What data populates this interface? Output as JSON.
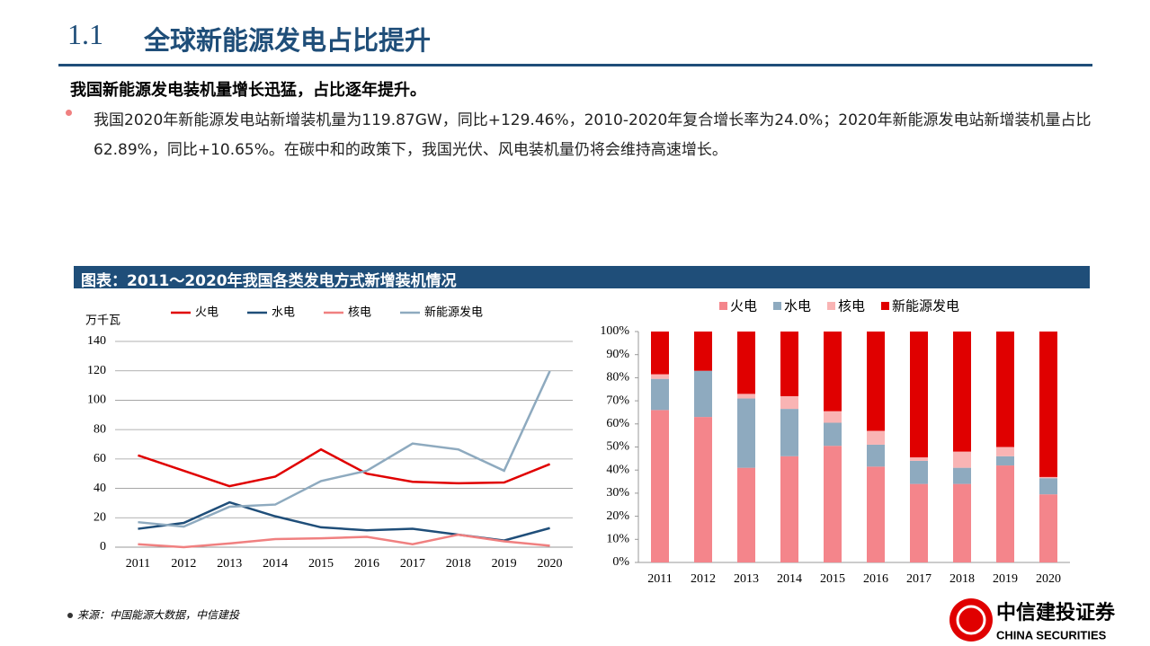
{
  "header": {
    "number": "1.1",
    "title": "全球新能源发电占比提升",
    "subtitle": "我国新能源发电装机量增长迅猛，占比逐年提升。",
    "bullet": "我国2020年新能源发电站新增装机量为119.87GW，同比+129.46%，2010-2020年复合增长率为24.0%；2020年新能源发电站新增装机量占比62.89%，同比+10.65%。在碳中和的政策下，我国光伏、风电装机量仍将会维持高速增长。"
  },
  "figure_title": "图表：2011～2020年我国各类发电方式新增装机情况",
  "source": "来源：中国能源大数据，中信建投",
  "logo": {
    "name": "中信建投证券",
    "english": "CHINA SECURITIES"
  },
  "chart_data": [
    {
      "type": "line",
      "ylabel": "万千瓦",
      "categories": [
        "2011",
        "2012",
        "2013",
        "2014",
        "2015",
        "2016",
        "2017",
        "2018",
        "2019",
        "2020"
      ],
      "series": [
        {
          "name": "火电",
          "color": "#e00000",
          "values": [
            62.5,
            52,
            41.5,
            48,
            66.5,
            50,
            44.5,
            43.5,
            44,
            56.5
          ]
        },
        {
          "name": "水电",
          "color": "#1f4e79",
          "values": [
            12.5,
            16.5,
            30.5,
            21,
            13.5,
            11.5,
            12.5,
            8.5,
            4.5,
            13
          ]
        },
        {
          "name": "核电",
          "color": "#f08080",
          "values": [
            2,
            0,
            2.5,
            5.5,
            6,
            7,
            2,
            8.5,
            4,
            1
          ]
        },
        {
          "name": "新能源发电",
          "color": "#8eaabf",
          "values": [
            17,
            14,
            27.5,
            29,
            45,
            52,
            70.5,
            66.5,
            52,
            119.87
          ]
        }
      ],
      "ylim": [
        0,
        140
      ],
      "yticks": [
        0,
        20,
        40,
        60,
        80,
        100,
        120,
        140
      ],
      "grid": true
    },
    {
      "type": "stacked_bar",
      "categories": [
        "2011",
        "2012",
        "2013",
        "2014",
        "2015",
        "2016",
        "2017",
        "2018",
        "2019",
        "2020"
      ],
      "series": [
        {
          "name": "火电",
          "color": "#f4858b",
          "values": [
            66,
            63,
            41,
            46,
            50.5,
            41.5,
            34,
            34,
            42,
            29.5
          ]
        },
        {
          "name": "水电",
          "color": "#8eaabf",
          "values": [
            13.5,
            20,
            30,
            20.5,
            10,
            9.5,
            10,
            7,
            4,
            7
          ]
        },
        {
          "name": "核电",
          "color": "#f9b4b4",
          "values": [
            2,
            0,
            2,
            5.5,
            5,
            6,
            1.5,
            7,
            4,
            0.5
          ]
        },
        {
          "name": "新能源发电",
          "color": "#e00000",
          "values": [
            18.5,
            17,
            27,
            28,
            34.5,
            43,
            54.5,
            52,
            50,
            63
          ]
        }
      ],
      "ylim": [
        0,
        100
      ],
      "yticks": [
        {
          "value": 0,
          "label": "0%"
        },
        {
          "value": 10,
          "label": "10%"
        },
        {
          "value": 20,
          "label": "20%"
        },
        {
          "value": 30,
          "label": "30%"
        },
        {
          "value": 40,
          "label": "40%"
        },
        {
          "value": 50,
          "label": "50%"
        },
        {
          "value": 60,
          "label": "60%"
        },
        {
          "value": 70,
          "label": "70%"
        },
        {
          "value": 80,
          "label": "80%"
        },
        {
          "value": 90,
          "label": "90%"
        },
        {
          "value": 100,
          "label": "100%"
        }
      ],
      "grid": false
    }
  ]
}
